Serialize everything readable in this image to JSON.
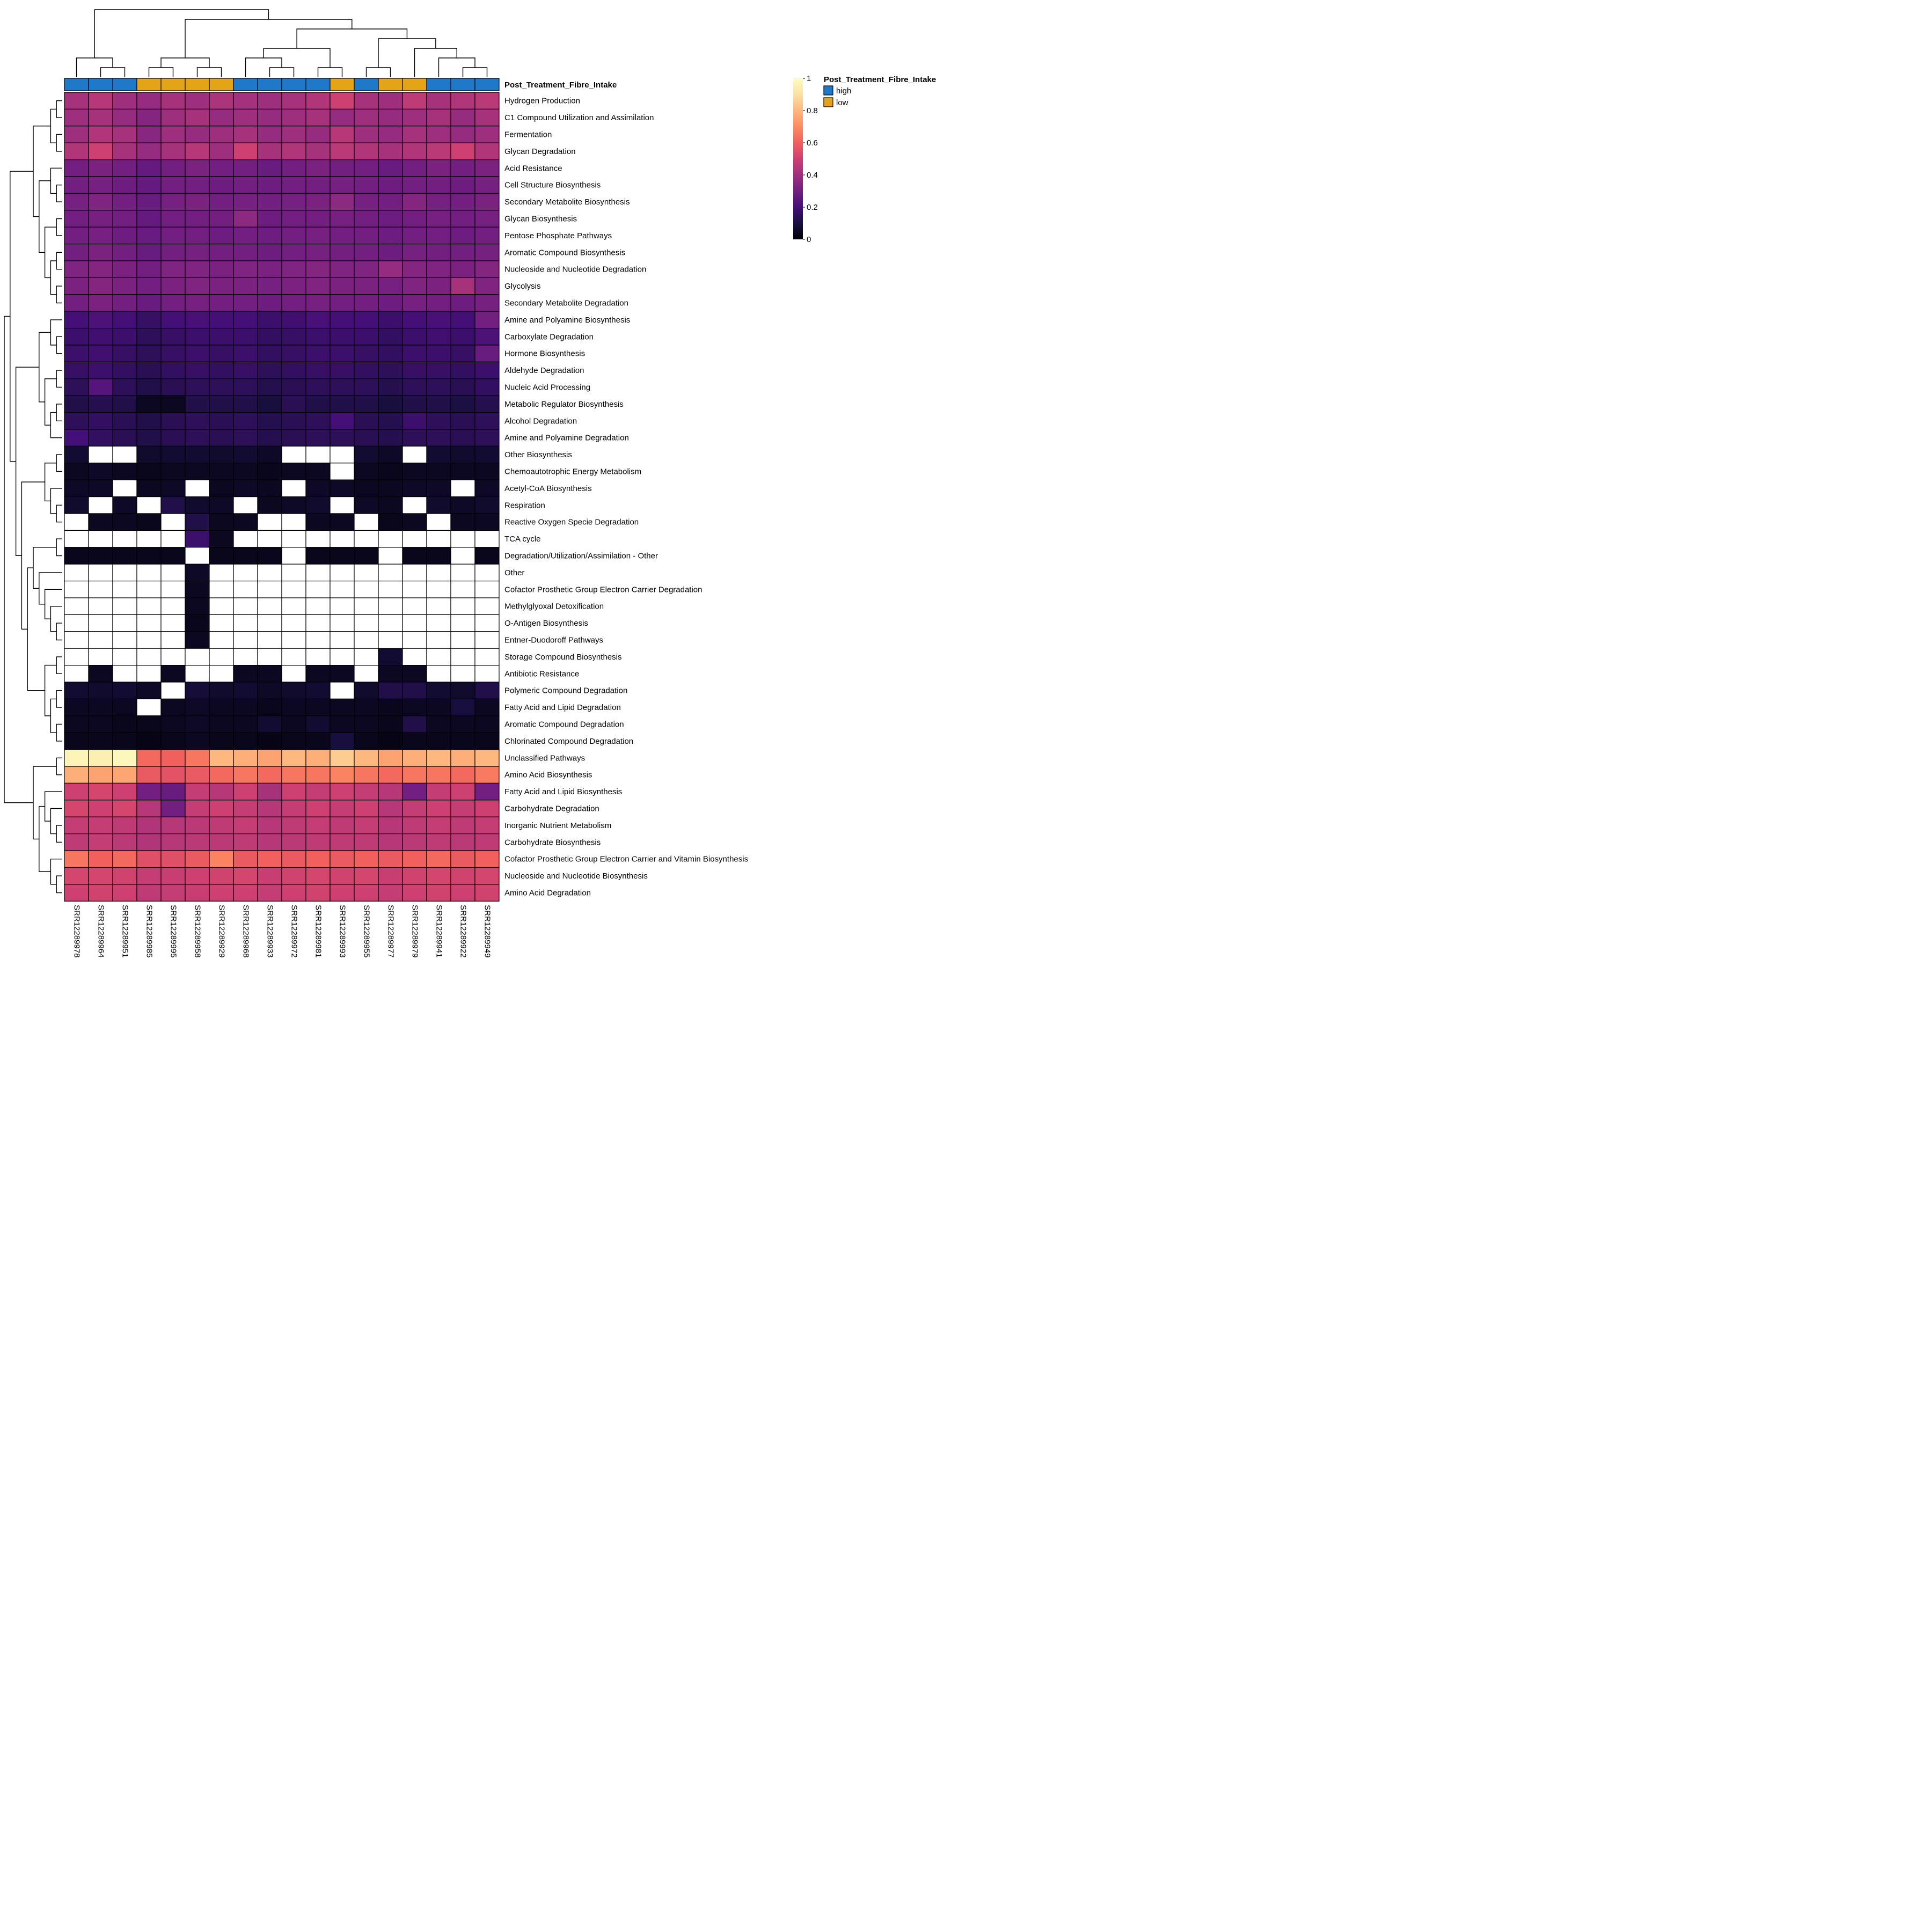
{
  "annotation": {
    "name": "Post_Treatment_Fibre_Intake",
    "legend_title": "Post_Treatment_Fibre_Intake",
    "classes": [
      {
        "label": "high",
        "color": "#1f78c8"
      },
      {
        "label": "low",
        "color": "#e3a418"
      }
    ],
    "values": [
      "high",
      "high",
      "high",
      "low",
      "low",
      "low",
      "low",
      "high",
      "high",
      "high",
      "high",
      "low",
      "high",
      "low",
      "low",
      "high",
      "high",
      "high"
    ]
  },
  "legend": {
    "ticks": [
      {
        "value": 1,
        "label": "1"
      },
      {
        "value": 0.8,
        "label": "0.8"
      },
      {
        "value": 0.6,
        "label": "0.6"
      },
      {
        "value": 0.4,
        "label": "0.4"
      },
      {
        "value": 0.2,
        "label": "0.2"
      },
      {
        "value": 0,
        "label": "0"
      }
    ]
  },
  "colors": {
    "na": "#ffffff",
    "border": "#000000",
    "dendrogram": "#000000"
  },
  "column_dendrogram": [
    [
      0,
      [
        1,
        2
      ]
    ],
    [
      [
        [
          3,
          4
        ],
        [
          5,
          6
        ]
      ],
      [
        [
          [
            7,
            [
              8,
              9
            ]
          ],
          [
            10,
            11
          ]
        ],
        [
          [
            12,
            13
          ],
          [
            14,
            [
              15,
              [
                16,
                17
              ]
            ]
          ]
        ]
      ]
    ]
  ],
  "row_dendrogram": [
    [
      [
        [
          [
            0,
            1
          ],
          [
            2,
            3
          ]
        ],
        [
          [
            4,
            [
              5,
              6
            ]
          ],
          [
            [
              7,
              8
            ],
            [
              [
                9,
                10
              ],
              [
                11,
                12
              ]
            ]
          ]
        ]
      ],
      [
        [
          [
            13,
            [
              14,
              15
            ]
          ],
          [
            [
              16,
              17
            ],
            [
              [
                18,
                19
              ],
              20
            ]
          ]
        ],
        [
          [
            [
              21,
              22
            ],
            [
              23,
              [
                24,
                25
              ]
            ]
          ],
          [
            [
              [
                26,
                27
              ],
              [
                28,
                [
                  29,
                  [
                    30,
                    [
                      31,
                      32
                    ]
                  ]
                ]
              ]
            ],
            [
              [
                33,
                34
              ],
              [
                [
                  35,
                  36
                ],
                [
                  37,
                  38
                ]
              ]
            ]
          ]
        ]
      ]
    ],
    [
      [
        39,
        40
      ],
      [
        [
          41,
          [
            42,
            [
              43,
              44
            ]
          ]
        ],
        [
          45,
          [
            46,
            47
          ]
        ]
      ]
    ]
  ],
  "chart_data": {
    "type": "heatmap",
    "title": "",
    "value_range": [
      0,
      1
    ],
    "na_color": "#ffffff",
    "colormap": "magma",
    "colormap_anchors": [
      [
        0,
        "#000004"
      ],
      [
        0.1,
        "#180f3e"
      ],
      [
        0.2,
        "#440f76"
      ],
      [
        0.3,
        "#721f81"
      ],
      [
        0.4,
        "#9e2f7f"
      ],
      [
        0.5,
        "#cd4071"
      ],
      [
        0.6,
        "#f1605d"
      ],
      [
        0.7,
        "#fc8c63"
      ],
      [
        0.8,
        "#feb77e"
      ],
      [
        0.9,
        "#fce1a4"
      ],
      [
        1,
        "#fcfdbf"
      ]
    ],
    "columns": [
      "SRR12289978",
      "SRR12289964",
      "SRR12289951",
      "SRR12289985",
      "SRR12289995",
      "SRR12289958",
      "SRR12289929",
      "SRR12289968",
      "SRR12289933",
      "SRR12289972",
      "SRR12289981",
      "SRR12289993",
      "SRR12289955",
      "SRR12289977",
      "SRR12289979",
      "SRR12289941",
      "SRR12289922",
      "SRR12289949"
    ],
    "rows": [
      "Hydrogen Production",
      "C1 Compound Utilization and Assimilation",
      "Fermentation",
      "Glycan Degradation",
      "Acid Resistance",
      "Cell Structure Biosynthesis",
      "Secondary Metabolite Biosynthesis",
      "Glycan Biosynthesis",
      "Pentose Phosphate Pathways",
      "Aromatic Compound Biosynthesis",
      "Nucleoside and Nucleotide Degradation",
      "Glycolysis",
      "Secondary Metabolite Degradation",
      "Amine and Polyamine Biosynthesis",
      "Carboxylate Degradation",
      "Hormone Biosynthesis",
      "Aldehyde Degradation",
      "Nucleic Acid Processing",
      "Metabolic Regulator Biosynthesis",
      "Alcohol Degradation",
      "Amine and Polyamine Degradation",
      "Other Biosynthesis",
      "Chemoautotrophic Energy Metabolism",
      "Acetyl-CoA Biosynthesis",
      "Respiration",
      "Reactive Oxygen Specie Degradation",
      "TCA cycle",
      "Degradation/Utilization/Assimilation - Other",
      "Other",
      "Cofactor Prosthetic Group Electron Carrier Degradation",
      "Methylglyoxal Detoxification",
      "O-Antigen Biosynthesis",
      "Entner-Duodoroff Pathways",
      "Storage Compound Biosynthesis",
      "Antibiotic Resistance",
      "Polymeric Compound Degradation",
      "Fatty Acid and Lipid Degradation",
      "Aromatic Compound Degradation",
      "Chlorinated Compound Degradation",
      "Unclassified Pathways",
      "Amino Acid Biosynthesis",
      "Fatty Acid and Lipid Biosynthesis",
      "Carbohydrate Degradation",
      "Inorganic Nutrient Metabolism",
      "Carbohydrate Biosynthesis",
      "Cofactor Prosthetic Group Electron Carrier and Vitamin Biosynthesis",
      "Nucleoside and Nucleotide Biosynthesis",
      "Amino Acid Degradation"
    ],
    "column_annotation": {
      "name": "Post_Treatment_Fibre_Intake",
      "values": [
        "high",
        "high",
        "high",
        "low",
        "low",
        "low",
        "low",
        "high",
        "high",
        "high",
        "high",
        "low",
        "high",
        "low",
        "low",
        "high",
        "high",
        "high"
      ]
    },
    "values": [
      [
        0.42,
        0.45,
        0.4,
        0.38,
        0.42,
        0.4,
        0.43,
        0.41,
        0.4,
        0.42,
        0.44,
        0.5,
        0.42,
        0.4,
        0.47,
        0.42,
        0.44,
        0.46
      ],
      [
        0.4,
        0.42,
        0.38,
        0.34,
        0.4,
        0.42,
        0.38,
        0.4,
        0.38,
        0.4,
        0.42,
        0.38,
        0.4,
        0.38,
        0.4,
        0.42,
        0.38,
        0.42
      ],
      [
        0.4,
        0.44,
        0.42,
        0.35,
        0.4,
        0.38,
        0.4,
        0.42,
        0.38,
        0.4,
        0.38,
        0.45,
        0.4,
        0.38,
        0.42,
        0.4,
        0.38,
        0.4
      ],
      [
        0.44,
        0.5,
        0.42,
        0.38,
        0.42,
        0.45,
        0.4,
        0.5,
        0.42,
        0.44,
        0.42,
        0.46,
        0.44,
        0.42,
        0.44,
        0.46,
        0.5,
        0.44
      ],
      [
        0.3,
        0.32,
        0.3,
        0.27,
        0.3,
        0.32,
        0.3,
        0.3,
        0.28,
        0.3,
        0.32,
        0.3,
        0.3,
        0.28,
        0.3,
        0.32,
        0.3,
        0.32
      ],
      [
        0.3,
        0.31,
        0.29,
        0.27,
        0.3,
        0.3,
        0.29,
        0.3,
        0.29,
        0.3,
        0.3,
        0.31,
        0.3,
        0.29,
        0.3,
        0.3,
        0.29,
        0.31
      ],
      [
        0.31,
        0.33,
        0.3,
        0.28,
        0.31,
        0.32,
        0.3,
        0.31,
        0.3,
        0.31,
        0.32,
        0.36,
        0.31,
        0.3,
        0.34,
        0.31,
        0.3,
        0.32
      ],
      [
        0.3,
        0.31,
        0.3,
        0.27,
        0.3,
        0.3,
        0.3,
        0.36,
        0.29,
        0.3,
        0.3,
        0.31,
        0.3,
        0.29,
        0.3,
        0.31,
        0.3,
        0.31
      ],
      [
        0.3,
        0.31,
        0.29,
        0.28,
        0.3,
        0.3,
        0.29,
        0.3,
        0.29,
        0.3,
        0.31,
        0.3,
        0.3,
        0.29,
        0.3,
        0.3,
        0.29,
        0.3
      ],
      [
        0.3,
        0.32,
        0.3,
        0.28,
        0.3,
        0.31,
        0.3,
        0.3,
        0.29,
        0.3,
        0.31,
        0.3,
        0.3,
        0.29,
        0.31,
        0.3,
        0.3,
        0.31
      ],
      [
        0.33,
        0.34,
        0.32,
        0.3,
        0.33,
        0.33,
        0.32,
        0.33,
        0.32,
        0.33,
        0.34,
        0.33,
        0.33,
        0.38,
        0.34,
        0.33,
        0.32,
        0.34
      ],
      [
        0.32,
        0.34,
        0.32,
        0.3,
        0.32,
        0.33,
        0.32,
        0.32,
        0.31,
        0.32,
        0.33,
        0.32,
        0.32,
        0.31,
        0.33,
        0.32,
        0.42,
        0.33
      ],
      [
        0.3,
        0.32,
        0.3,
        0.28,
        0.3,
        0.31,
        0.3,
        0.3,
        0.29,
        0.3,
        0.31,
        0.3,
        0.3,
        0.29,
        0.31,
        0.3,
        0.29,
        0.31
      ],
      [
        0.2,
        0.22,
        0.2,
        0.17,
        0.2,
        0.21,
        0.2,
        0.2,
        0.18,
        0.19,
        0.21,
        0.2,
        0.2,
        0.18,
        0.2,
        0.21,
        0.2,
        0.3
      ],
      [
        0.18,
        0.19,
        0.18,
        0.15,
        0.17,
        0.18,
        0.18,
        0.18,
        0.16,
        0.17,
        0.18,
        0.18,
        0.18,
        0.16,
        0.18,
        0.19,
        0.18,
        0.22
      ],
      [
        0.18,
        0.19,
        0.17,
        0.15,
        0.17,
        0.18,
        0.17,
        0.18,
        0.16,
        0.17,
        0.18,
        0.18,
        0.17,
        0.16,
        0.18,
        0.18,
        0.17,
        0.28
      ],
      [
        0.17,
        0.18,
        0.16,
        0.14,
        0.16,
        0.17,
        0.16,
        0.17,
        0.15,
        0.16,
        0.17,
        0.17,
        0.16,
        0.15,
        0.17,
        0.17,
        0.16,
        0.18
      ],
      [
        0.15,
        0.24,
        0.15,
        0.12,
        0.14,
        0.15,
        0.15,
        0.15,
        0.13,
        0.14,
        0.15,
        0.15,
        0.15,
        0.13,
        0.15,
        0.15,
        0.14,
        0.16
      ],
      [
        0.12,
        0.13,
        0.12,
        0.05,
        0.05,
        0.12,
        0.12,
        0.12,
        0.1,
        0.14,
        0.12,
        0.12,
        0.12,
        0.1,
        0.12,
        0.12,
        0.11,
        0.13
      ],
      [
        0.15,
        0.16,
        0.14,
        0.12,
        0.14,
        0.15,
        0.14,
        0.15,
        0.13,
        0.14,
        0.15,
        0.2,
        0.14,
        0.13,
        0.18,
        0.15,
        0.14,
        0.15
      ],
      [
        0.2,
        0.16,
        0.14,
        0.12,
        0.14,
        0.15,
        0.14,
        0.15,
        0.13,
        0.14,
        0.15,
        0.15,
        0.14,
        0.13,
        0.15,
        0.15,
        0.14,
        0.15
      ],
      [
        0.08,
        null,
        null,
        0.07,
        0.08,
        0.08,
        0.07,
        0.08,
        0.06,
        null,
        null,
        null,
        0.08,
        0.06,
        null,
        0.08,
        0.07,
        0.08
      ],
      [
        0.05,
        0.06,
        0.05,
        0.04,
        0.05,
        0.05,
        0.05,
        0.05,
        0.04,
        0.05,
        0.05,
        null,
        0.05,
        0.04,
        0.05,
        0.05,
        0.05,
        0.05
      ],
      [
        0.06,
        0.06,
        null,
        0.05,
        0.06,
        null,
        0.05,
        0.06,
        0.05,
        null,
        0.06,
        0.06,
        0.05,
        0.05,
        0.06,
        0.06,
        null,
        0.06
      ],
      [
        0.07,
        null,
        0.06,
        null,
        0.12,
        0.07,
        0.06,
        null,
        0.05,
        0.06,
        0.07,
        null,
        0.06,
        0.05,
        null,
        0.07,
        0.06,
        0.07
      ],
      [
        null,
        0.05,
        0.05,
        0.04,
        null,
        0.12,
        0.05,
        0.05,
        null,
        null,
        0.05,
        0.05,
        null,
        0.04,
        0.05,
        null,
        0.05,
        0.05
      ],
      [
        null,
        null,
        null,
        null,
        null,
        0.18,
        0.05,
        null,
        null,
        null,
        null,
        null,
        null,
        null,
        null,
        null,
        null,
        null
      ],
      [
        0.04,
        0.04,
        0.04,
        0.04,
        0.04,
        null,
        0.04,
        0.04,
        0.04,
        null,
        0.04,
        0.04,
        0.04,
        null,
        0.04,
        0.04,
        null,
        0.04
      ],
      [
        null,
        null,
        null,
        null,
        null,
        0.06,
        null,
        null,
        null,
        null,
        null,
        null,
        null,
        null,
        null,
        null,
        null,
        null
      ],
      [
        null,
        null,
        null,
        null,
        null,
        0.05,
        null,
        null,
        null,
        null,
        null,
        null,
        null,
        null,
        null,
        null,
        null,
        null
      ],
      [
        null,
        null,
        null,
        null,
        null,
        0.05,
        null,
        null,
        null,
        null,
        null,
        null,
        null,
        null,
        null,
        null,
        null,
        null
      ],
      [
        null,
        null,
        null,
        null,
        null,
        0.04,
        null,
        null,
        null,
        null,
        null,
        null,
        null,
        null,
        null,
        null,
        null,
        null
      ],
      [
        null,
        null,
        null,
        null,
        null,
        0.05,
        null,
        null,
        null,
        null,
        null,
        null,
        null,
        null,
        null,
        null,
        null,
        null
      ],
      [
        null,
        null,
        null,
        null,
        null,
        null,
        null,
        null,
        null,
        null,
        null,
        null,
        null,
        0.08,
        null,
        null,
        null,
        null
      ],
      [
        null,
        0.05,
        null,
        null,
        0.05,
        null,
        null,
        0.05,
        0.05,
        null,
        0.05,
        0.05,
        null,
        0.05,
        0.05,
        null,
        null,
        null
      ],
      [
        0.08,
        0.07,
        0.08,
        0.06,
        null,
        0.09,
        0.07,
        0.08,
        0.06,
        0.07,
        0.08,
        null,
        0.07,
        0.12,
        0.12,
        0.08,
        0.07,
        0.12
      ],
      [
        0.05,
        0.05,
        0.05,
        null,
        0.05,
        0.06,
        0.05,
        0.05,
        0.04,
        0.05,
        0.05,
        0.05,
        0.05,
        0.04,
        0.05,
        0.05,
        0.1,
        0.05
      ],
      [
        0.05,
        0.05,
        0.04,
        0.04,
        0.05,
        0.06,
        0.05,
        0.05,
        0.08,
        0.05,
        0.08,
        0.05,
        0.05,
        0.04,
        0.12,
        0.05,
        0.05,
        0.05
      ],
      [
        0.04,
        0.04,
        0.04,
        0.03,
        0.04,
        0.05,
        0.04,
        0.04,
        0.03,
        0.04,
        0.04,
        0.1,
        0.04,
        0.03,
        0.04,
        0.04,
        0.04,
        0.04
      ],
      [
        0.97,
        0.95,
        0.98,
        0.62,
        0.6,
        0.65,
        0.8,
        0.78,
        0.75,
        0.8,
        0.78,
        0.85,
        0.8,
        0.75,
        0.78,
        0.8,
        0.78,
        0.8
      ],
      [
        0.78,
        0.75,
        0.76,
        0.58,
        0.56,
        0.58,
        0.62,
        0.65,
        0.62,
        0.65,
        0.65,
        0.68,
        0.65,
        0.62,
        0.65,
        0.65,
        0.62,
        0.66
      ],
      [
        0.5,
        0.52,
        0.5,
        0.3,
        0.28,
        0.48,
        0.45,
        0.5,
        0.42,
        0.5,
        0.48,
        0.5,
        0.48,
        0.45,
        0.3,
        0.48,
        0.5,
        0.3
      ],
      [
        0.52,
        0.5,
        0.52,
        0.45,
        0.3,
        0.48,
        0.5,
        0.48,
        0.45,
        0.48,
        0.5,
        0.48,
        0.5,
        0.45,
        0.48,
        0.5,
        0.48,
        0.5
      ],
      [
        0.48,
        0.48,
        0.47,
        0.44,
        0.45,
        0.46,
        0.47,
        0.48,
        0.45,
        0.47,
        0.48,
        0.47,
        0.48,
        0.45,
        0.47,
        0.48,
        0.47,
        0.48
      ],
      [
        0.47,
        0.48,
        0.46,
        0.44,
        0.45,
        0.46,
        0.46,
        0.47,
        0.45,
        0.46,
        0.47,
        0.47,
        0.47,
        0.45,
        0.46,
        0.47,
        0.46,
        0.47
      ],
      [
        0.65,
        0.6,
        0.62,
        0.55,
        0.55,
        0.58,
        0.68,
        0.58,
        0.6,
        0.58,
        0.6,
        0.58,
        0.6,
        0.58,
        0.6,
        0.62,
        0.58,
        0.6
      ],
      [
        0.52,
        0.52,
        0.51,
        0.48,
        0.49,
        0.5,
        0.51,
        0.52,
        0.49,
        0.51,
        0.52,
        0.51,
        0.52,
        0.49,
        0.51,
        0.52,
        0.51,
        0.52
      ],
      [
        0.5,
        0.51,
        0.5,
        0.47,
        0.48,
        0.49,
        0.5,
        0.5,
        0.48,
        0.5,
        0.51,
        0.5,
        0.5,
        0.48,
        0.5,
        0.51,
        0.5,
        0.51
      ]
    ]
  }
}
